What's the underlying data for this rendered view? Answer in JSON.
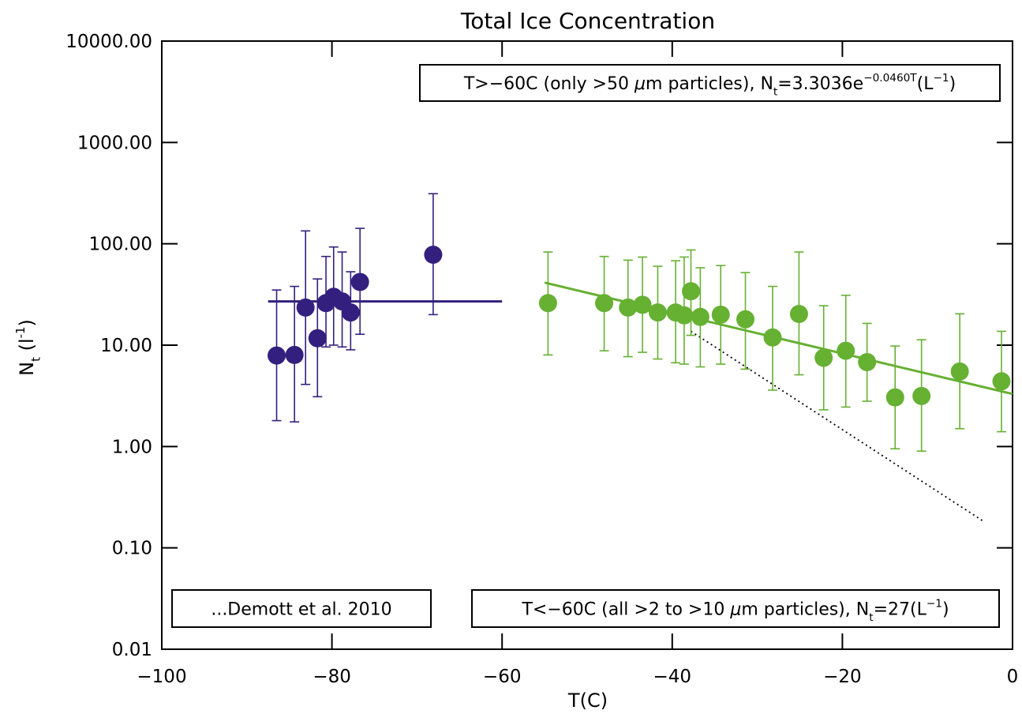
{
  "chart_data": {
    "type": "scatter",
    "title": "Total Ice Concentration",
    "xlabel": "T(C)",
    "ylabel": [
      {
        "text": "N",
        "shift": "base"
      },
      {
        "text": "t",
        "shift": "sub"
      },
      {
        "text": " (l",
        "shift": "base"
      },
      {
        "text": "-1",
        "shift": "sup"
      },
      {
        "text": ")",
        "shift": "base"
      }
    ],
    "xlim": [
      -100,
      0
    ],
    "xticks": [
      {
        "value": -100,
        "label": "−100"
      },
      {
        "value": -80,
        "label": "−80"
      },
      {
        "value": -60,
        "label": "−60"
      },
      {
        "value": -40,
        "label": "−40"
      },
      {
        "value": -20,
        "label": "−20"
      },
      0
    ],
    "ylim": [
      0.01,
      10000
    ],
    "yscale": "log",
    "yticks": [
      {
        "value": 0.01,
        "label": "0.01"
      },
      {
        "value": 0.1,
        "label": "0.10"
      },
      {
        "value": 1,
        "label": "1.00"
      },
      {
        "value": 10,
        "label": "10.00"
      },
      {
        "value": 100,
        "label": "100.00"
      },
      {
        "value": 1000,
        "label": "1000.00"
      },
      {
        "value": 10000,
        "label": "10000.00"
      }
    ],
    "series": [
      {
        "color": "#33207e",
        "x": [
          -86.5,
          -84.4,
          -83.1,
          -81.7,
          -80.7,
          -79.8,
          -78.8,
          -77.8,
          -76.7,
          -68.1
        ],
        "values": [
          7.9,
          8.0,
          23.5,
          11.7,
          26,
          30,
          27,
          21,
          42,
          78
        ],
        "lower": [
          1.8,
          1.75,
          4.1,
          3.1,
          9.6,
          10,
          9.6,
          9,
          12.8,
          20
        ],
        "upper": [
          35,
          38,
          134,
          45,
          75,
          93,
          83,
          53,
          142,
          312
        ]
      },
      {
        "color": "#66b032",
        "x": [
          -54.6,
          -48.0,
          -45.2,
          -43.5,
          -41.7,
          -39.6,
          -38.6,
          -37.8,
          -36.7,
          -34.3,
          -31.4,
          -28.2,
          -25.1,
          -22.2,
          -19.6,
          -17.1,
          -13.8,
          -10.7,
          -6.2,
          -1.3
        ],
        "values": [
          26,
          26,
          23.5,
          25,
          21,
          21,
          19.7,
          34,
          19,
          20,
          18,
          11.9,
          20.3,
          7.5,
          8.8,
          6.8,
          3.05,
          3.15,
          5.5,
          4.4
        ],
        "lower": [
          8,
          8.8,
          7.7,
          8.5,
          7.3,
          6.7,
          6.5,
          12.5,
          6.1,
          6.5,
          5.8,
          3.6,
          5.1,
          2.3,
          2.45,
          2.8,
          0.95,
          0.9,
          1.5,
          1.4
        ],
        "upper": [
          83,
          75,
          69,
          74,
          60,
          68,
          74,
          87,
          58,
          61,
          52,
          38,
          83,
          24.5,
          31,
          16.4,
          9.8,
          11.3,
          20.4,
          13.7
        ]
      }
    ],
    "lines": [
      {
        "color": "#33207e",
        "dash": "solid",
        "x": [
          -87.5,
          -60
        ],
        "values": [
          27,
          27
        ]
      },
      {
        "color": "#66b032",
        "dash": "solid",
        "x": [
          -55,
          0
        ],
        "values": [
          41.4,
          3.3
        ]
      },
      {
        "color": "#000000",
        "dash": "dotted",
        "x": [
          -37.8,
          -3.5
        ],
        "values": [
          13.7,
          0.185
        ]
      }
    ],
    "annotations": [
      {
        "color": "#66b032",
        "segments": [
          {
            "text": "T>−60C (only >50 ",
            "shift": "base"
          },
          {
            "text": "μ",
            "shift": "base"
          },
          {
            "text": "m particles), N",
            "shift": "base"
          },
          {
            "text": "t",
            "shift": "sub"
          },
          {
            "text": "=3.3036e",
            "shift": "base"
          },
          {
            "text": "−0.0460T",
            "shift": "sup"
          },
          {
            "text": "(L",
            "shift": "base"
          },
          {
            "text": "−1",
            "shift": "sup"
          },
          {
            "text": ")",
            "shift": "base"
          }
        ]
      },
      {
        "color": "#000000",
        "segments": [
          {
            "text": "...Demott et al. 2010",
            "shift": "base"
          }
        ]
      },
      {
        "color": "#33207e",
        "segments": [
          {
            "text": "T<−60C (all >2 to >10 ",
            "shift": "base"
          },
          {
            "text": "μ",
            "shift": "base"
          },
          {
            "text": "m  particles), N",
            "shift": "base"
          },
          {
            "text": "t",
            "shift": "sub"
          },
          {
            "text": "=27(L",
            "shift": "base"
          },
          {
            "text": "−1",
            "shift": "sup"
          },
          {
            "text": ")",
            "shift": "base"
          }
        ]
      }
    ]
  }
}
